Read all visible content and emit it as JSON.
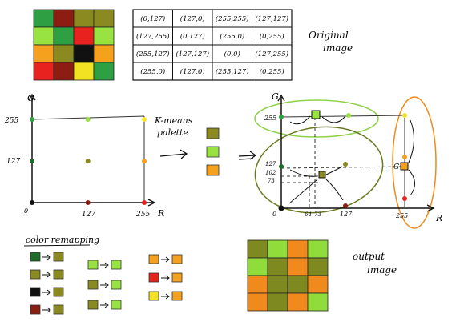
{
  "colors": {
    "red": "#e8231f",
    "dark_red": "#8b1d12",
    "green": "#2ea043",
    "dark_green": "#1f6b2a",
    "lime": "#98e342",
    "olive": "#8a8a21",
    "yellow": "#f2e224",
    "orange": "#f5a11e",
    "black": "#111111",
    "out_olive": "#7e8a1f",
    "out_lime": "#8fdc3a",
    "out_orange": "#f08a1c"
  },
  "original_image": {
    "label_line1": "Original",
    "label_line2": "image",
    "grid": [
      [
        "green",
        "dark_red",
        "olive",
        "olive"
      ],
      [
        "lime",
        "green",
        "red",
        "lime"
      ],
      [
        "orange",
        "olive",
        "black",
        "orange"
      ],
      [
        "red",
        "dark_red",
        "yellow",
        "green"
      ]
    ]
  },
  "rgb_table": {
    "rows": [
      [
        "(0,127)",
        "(127,0)",
        "(255,255)",
        "(127,127)"
      ],
      [
        "(127,255)",
        "(0,127)",
        "(255,0)",
        "(0,255)"
      ],
      [
        "(255,127)",
        "(127,127)",
        "(0,0)",
        "(127,255)"
      ],
      [
        "(255,0)",
        "(127,0)",
        "(255,127)",
        "(0,255)"
      ]
    ]
  },
  "scatter_left": {
    "axis_y_label": "G",
    "axis_x_label": "R",
    "y_ticks": [
      "255",
      "127"
    ],
    "x_ticks": [
      "0",
      "127",
      "255"
    ],
    "points": [
      {
        "r": 0,
        "g": 255,
        "color": "green"
      },
      {
        "r": 127,
        "g": 255,
        "color": "lime"
      },
      {
        "r": 255,
        "g": 255,
        "color": "yellow"
      },
      {
        "r": 0,
        "g": 127,
        "color": "dark_green"
      },
      {
        "r": 127,
        "g": 127,
        "color": "olive"
      },
      {
        "r": 255,
        "g": 127,
        "color": "orange"
      },
      {
        "r": 0,
        "g": 0,
        "color": "black"
      },
      {
        "r": 127,
        "g": 0,
        "color": "dark_red"
      },
      {
        "r": 255,
        "g": 0,
        "color": "red"
      }
    ]
  },
  "kmeans": {
    "label_line1": "K-means",
    "label_line2": "palette",
    "palette": [
      "olive",
      "lime",
      "orange"
    ]
  },
  "scatter_right": {
    "axis_y_label": "G",
    "axis_x_label": "R",
    "y_ticks": [
      "255",
      "127",
      "102",
      "73"
    ],
    "x_ticks": [
      "0",
      "64",
      "73",
      "127",
      "255"
    ],
    "cluster_marker_labels": [
      "G"
    ]
  },
  "color_remapping": {
    "title": "color remapping",
    "column1": [
      {
        "from": "dark_green",
        "to": "olive"
      },
      {
        "from": "olive",
        "to": "olive"
      },
      {
        "from": "black",
        "to": "olive"
      },
      {
        "from": "dark_red",
        "to": "olive"
      }
    ],
    "column2": [
      {
        "from": "lime",
        "to": "lime"
      },
      {
        "from": "olive",
        "to": "lime"
      },
      {
        "from": "olive",
        "to": "lime"
      }
    ],
    "column3": [
      {
        "from": "orange",
        "to": "orange"
      },
      {
        "from": "red",
        "to": "orange"
      },
      {
        "from": "yellow",
        "to": "orange"
      }
    ]
  },
  "output_image": {
    "label_line1": "output",
    "label_line2": "image",
    "grid": [
      [
        "out_olive",
        "out_lime",
        "out_orange",
        "out_lime"
      ],
      [
        "out_lime",
        "out_olive",
        "out_orange",
        "out_olive"
      ],
      [
        "out_orange",
        "out_olive",
        "out_olive",
        "out_orange"
      ],
      [
        "out_orange",
        "out_olive",
        "out_orange",
        "out_lime"
      ]
    ]
  }
}
